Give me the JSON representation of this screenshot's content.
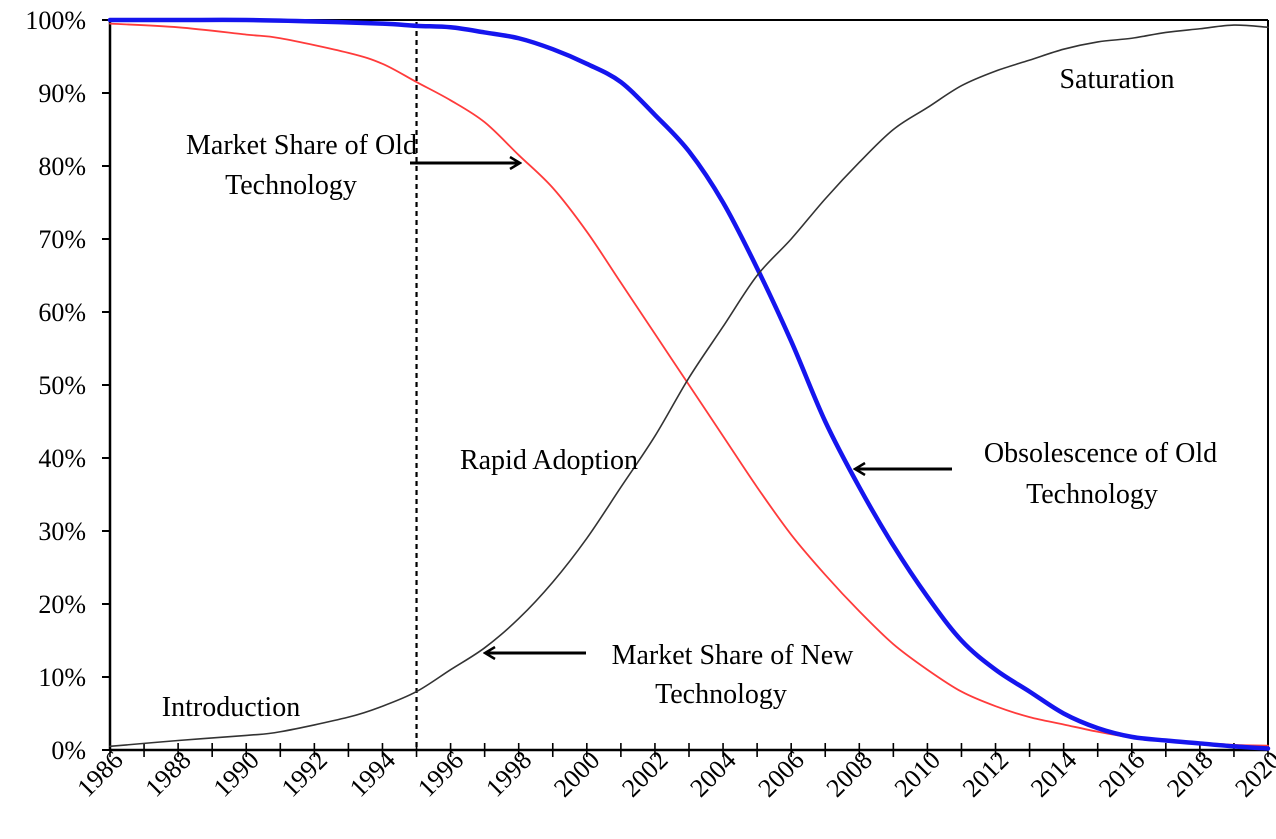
{
  "chart_data": {
    "type": "line",
    "title": "",
    "xlabel": "",
    "ylabel": "",
    "xlim": [
      1986,
      2020
    ],
    "ylim": [
      0,
      100
    ],
    "grid": false,
    "x_ticks": [
      "1986",
      "1988",
      "1990",
      "1992",
      "1994",
      "1996",
      "1998",
      "2000",
      "2002",
      "2004",
      "2006",
      "2008",
      "2010",
      "2012",
      "2014",
      "2016",
      "2018",
      "2020"
    ],
    "y_ticks": [
      "0%",
      "10%",
      "20%",
      "30%",
      "40%",
      "50%",
      "60%",
      "70%",
      "80%",
      "90%",
      "100%"
    ],
    "reference_line": {
      "x": 1995,
      "style": "dashed"
    },
    "series": [
      {
        "color": "#ff3b3b",
        "x": [
          1986,
          1988,
          1990,
          1991,
          1993,
          1994,
          1995,
          1996,
          1997,
          1998,
          1999,
          2000,
          2001,
          2002,
          2003,
          2004,
          2005,
          2006,
          2007,
          2008,
          2009,
          2010,
          2011,
          2012,
          2013,
          2014,
          2015,
          2016,
          2017,
          2018,
          2019,
          2020
        ],
        "values": [
          99.5,
          99,
          98,
          97.5,
          95.5,
          94,
          91.5,
          89,
          86,
          81.5,
          77,
          71,
          64,
          57,
          50,
          43,
          36,
          29.5,
          24,
          19,
          14.5,
          11,
          8,
          6,
          4.5,
          3.5,
          2.5,
          1.7,
          1.2,
          1,
          0.7,
          0.6
        ]
      },
      {
        "color": "#1515ee",
        "x": [
          1986,
          1988,
          1990,
          1992,
          1994,
          1995,
          1996,
          1997,
          1998,
          1999,
          2000,
          2001,
          2002,
          2003,
          2004,
          2005,
          2006,
          2007,
          2008,
          2009,
          2010,
          2011,
          2012,
          2013,
          2014,
          2015,
          2016,
          2017,
          2018,
          2019,
          2020
        ],
        "values": [
          100,
          100,
          100,
          99.8,
          99.5,
          99.2,
          99,
          98.3,
          97.5,
          96,
          94,
          91.5,
          87,
          82,
          75,
          66,
          56,
          45,
          36,
          28,
          21,
          15,
          11,
          8,
          5,
          3,
          1.8,
          1.3,
          0.9,
          0.5,
          0.2
        ]
      },
      {
        "color": "#333333",
        "x": [
          1986,
          1988,
          1990,
          1991,
          1993,
          1994,
          1995,
          1996,
          1997,
          1998,
          1999,
          2000,
          2001,
          2002,
          2003,
          2004,
          2005,
          2006,
          2007,
          2008,
          2009,
          2010,
          2011,
          2012,
          2013,
          2014,
          2015,
          2016,
          2017,
          2018,
          2019,
          2020
        ],
        "values": [
          0.5,
          1.3,
          2,
          2.5,
          4.5,
          6,
          8,
          11,
          14,
          18,
          23,
          29,
          36,
          43,
          51,
          58,
          65,
          70,
          75.5,
          80.5,
          85,
          88,
          91,
          93,
          94.5,
          96,
          97,
          97.5,
          98.3,
          98.8,
          99.3,
          99
        ]
      }
    ],
    "annotations": [
      {
        "lines": [
          "Market Share of Old",
          "Technology"
        ]
      },
      {
        "lines": [
          "Saturation"
        ]
      },
      {
        "lines": [
          "Rapid Adoption"
        ]
      },
      {
        "lines": [
          "Obsolescence of Old",
          "Technology"
        ]
      },
      {
        "lines": [
          "Market Share of New",
          "Technology"
        ]
      },
      {
        "lines": [
          "Introduction"
        ]
      }
    ]
  }
}
